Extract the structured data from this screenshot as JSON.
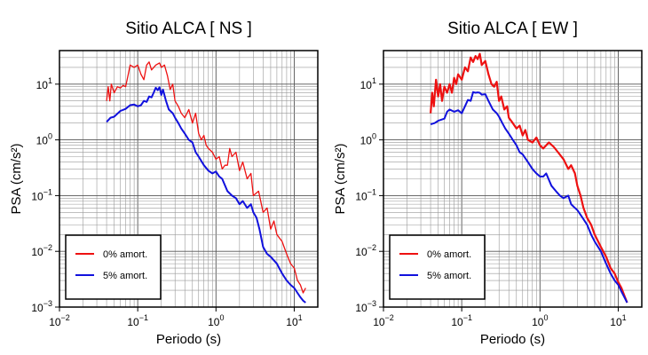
{
  "chart_data": [
    {
      "type": "line",
      "title": "Sitio ALCA [ NS ]",
      "xlabel": "Periodo (s)",
      "ylabel": "PSA (cm/s²)",
      "xscale": "log",
      "yscale": "log",
      "xlim": [
        0.01,
        20
      ],
      "ylim": [
        0.001,
        40
      ],
      "grid": true,
      "legend_position": "bottom-left",
      "x_ticks": [
        {
          "base": "10",
          "exp": "−2"
        },
        {
          "base": "10",
          "exp": "−1"
        },
        {
          "base": "10",
          "exp": "0"
        },
        {
          "base": "10",
          "exp": "1"
        }
      ],
      "y_ticks": [
        {
          "base": "10",
          "exp": "−3"
        },
        {
          "base": "10",
          "exp": "−2"
        },
        {
          "base": "10",
          "exp": "−1"
        },
        {
          "base": "10",
          "exp": "0"
        },
        {
          "base": "10",
          "exp": "1"
        }
      ],
      "series": [
        {
          "name": "0% amort.",
          "color": "#ee1111",
          "points": [
            [
              0.04,
              5.0
            ],
            [
              0.042,
              9.0
            ],
            [
              0.044,
              5.0
            ],
            [
              0.046,
              10.0
            ],
            [
              0.05,
              7.0
            ],
            [
              0.055,
              9.0
            ],
            [
              0.06,
              8.5
            ],
            [
              0.065,
              9.5
            ],
            [
              0.07,
              9.0
            ],
            [
              0.075,
              14.0
            ],
            [
              0.08,
              22.0
            ],
            [
              0.09,
              20.0
            ],
            [
              0.1,
              22.0
            ],
            [
              0.11,
              15.0
            ],
            [
              0.12,
              12.0
            ],
            [
              0.13,
              22.0
            ],
            [
              0.14,
              25.0
            ],
            [
              0.15,
              18.0
            ],
            [
              0.17,
              22.0
            ],
            [
              0.19,
              24.0
            ],
            [
              0.2,
              20.0
            ],
            [
              0.22,
              22.0
            ],
            [
              0.24,
              14.0
            ],
            [
              0.26,
              8.0
            ],
            [
              0.28,
              10.0
            ],
            [
              0.3,
              5.0
            ],
            [
              0.33,
              4.0
            ],
            [
              0.36,
              3.0
            ],
            [
              0.4,
              2.5
            ],
            [
              0.45,
              3.5
            ],
            [
              0.5,
              2.0
            ],
            [
              0.55,
              3.0
            ],
            [
              0.6,
              1.3
            ],
            [
              0.65,
              1.0
            ],
            [
              0.7,
              1.2
            ],
            [
              0.75,
              0.8
            ],
            [
              0.8,
              0.7
            ],
            [
              0.9,
              0.6
            ],
            [
              1.0,
              0.45
            ],
            [
              1.1,
              0.5
            ],
            [
              1.2,
              0.3
            ],
            [
              1.3,
              0.35
            ],
            [
              1.4,
              0.35
            ],
            [
              1.5,
              0.7
            ],
            [
              1.6,
              0.5
            ],
            [
              1.8,
              0.6
            ],
            [
              2.0,
              0.28
            ],
            [
              2.2,
              0.4
            ],
            [
              2.5,
              0.2
            ],
            [
              2.8,
              0.25
            ],
            [
              3.0,
              0.1
            ],
            [
              3.5,
              0.12
            ],
            [
              4.0,
              0.05
            ],
            [
              4.5,
              0.06
            ],
            [
              5.0,
              0.025
            ],
            [
              5.5,
              0.035
            ],
            [
              6.0,
              0.02
            ],
            [
              7.0,
              0.015
            ],
            [
              8.0,
              0.009
            ],
            [
              9.0,
              0.006
            ],
            [
              10.0,
              0.005
            ],
            [
              11.0,
              0.003
            ],
            [
              12.0,
              0.0025
            ],
            [
              13.0,
              0.0018
            ],
            [
              14.0,
              0.0022
            ]
          ]
        },
        {
          "name": "5% amort.",
          "color": "#1111dd",
          "points": [
            [
              0.04,
              2.1
            ],
            [
              0.045,
              2.5
            ],
            [
              0.05,
              2.6
            ],
            [
              0.06,
              3.3
            ],
            [
              0.07,
              3.6
            ],
            [
              0.08,
              4.2
            ],
            [
              0.09,
              4.3
            ],
            [
              0.1,
              4.0
            ],
            [
              0.11,
              4.2
            ],
            [
              0.12,
              5.0
            ],
            [
              0.13,
              4.8
            ],
            [
              0.14,
              6.0
            ],
            [
              0.15,
              5.8
            ],
            [
              0.16,
              7.0
            ],
            [
              0.17,
              8.6
            ],
            [
              0.18,
              7.8
            ],
            [
              0.19,
              8.8
            ],
            [
              0.2,
              6.4
            ],
            [
              0.21,
              8.0
            ],
            [
              0.23,
              5.0
            ],
            [
              0.25,
              3.5
            ],
            [
              0.28,
              3.0
            ],
            [
              0.3,
              2.5
            ],
            [
              0.33,
              2.0
            ],
            [
              0.36,
              1.6
            ],
            [
              0.4,
              1.3
            ],
            [
              0.45,
              1.0
            ],
            [
              0.5,
              0.9
            ],
            [
              0.55,
              0.6
            ],
            [
              0.6,
              0.5
            ],
            [
              0.7,
              0.35
            ],
            [
              0.8,
              0.28
            ],
            [
              0.9,
              0.25
            ],
            [
              1.0,
              0.27
            ],
            [
              1.1,
              0.22
            ],
            [
              1.2,
              0.2
            ],
            [
              1.4,
              0.12
            ],
            [
              1.6,
              0.1
            ],
            [
              1.8,
              0.09
            ],
            [
              2.0,
              0.07
            ],
            [
              2.2,
              0.08
            ],
            [
              2.5,
              0.06
            ],
            [
              2.8,
              0.07
            ],
            [
              3.0,
              0.05
            ],
            [
              3.3,
              0.04
            ],
            [
              3.6,
              0.025
            ],
            [
              4.0,
              0.012
            ],
            [
              4.5,
              0.009
            ],
            [
              5.0,
              0.008
            ],
            [
              6.0,
              0.006
            ],
            [
              7.0,
              0.004
            ],
            [
              8.0,
              0.003
            ],
            [
              9.0,
              0.0025
            ],
            [
              10.0,
              0.0022
            ],
            [
              11.0,
              0.0018
            ],
            [
              12.0,
              0.0015
            ],
            [
              13.0,
              0.0013
            ],
            [
              14.0,
              0.0012
            ]
          ]
        }
      ]
    },
    {
      "type": "line",
      "title": "Sitio ALCA [ EW ]",
      "xlabel": "Periodo (s)",
      "ylabel": "PSA (cm/s²)",
      "xscale": "log",
      "yscale": "log",
      "xlim": [
        0.01,
        20
      ],
      "ylim": [
        0.001,
        40
      ],
      "grid": true,
      "legend_position": "bottom-left",
      "x_ticks": [
        {
          "base": "10",
          "exp": "−2"
        },
        {
          "base": "10",
          "exp": "−1"
        },
        {
          "base": "10",
          "exp": "0"
        },
        {
          "base": "10",
          "exp": "1"
        }
      ],
      "y_ticks": [
        {
          "base": "10",
          "exp": "−3"
        },
        {
          "base": "10",
          "exp": "−2"
        },
        {
          "base": "10",
          "exp": "−1"
        },
        {
          "base": "10",
          "exp": "0"
        },
        {
          "base": "10",
          "exp": "1"
        }
      ],
      "series": [
        {
          "name": "0% amort.",
          "color": "#ee1111",
          "points": [
            [
              0.04,
              3.0
            ],
            [
              0.042,
              7.0
            ],
            [
              0.044,
              4.0
            ],
            [
              0.047,
              12.0
            ],
            [
              0.05,
              6.0
            ],
            [
              0.053,
              10.0
            ],
            [
              0.056,
              5.0
            ],
            [
              0.06,
              9.0
            ],
            [
              0.065,
              7.0
            ],
            [
              0.07,
              10.0
            ],
            [
              0.075,
              7.0
            ],
            [
              0.08,
              13.0
            ],
            [
              0.085,
              10.0
            ],
            [
              0.09,
              15.0
            ],
            [
              0.1,
              12.0
            ],
            [
              0.11,
              20.0
            ],
            [
              0.12,
              17.0
            ],
            [
              0.13,
              30.0
            ],
            [
              0.14,
              25.0
            ],
            [
              0.15,
              32.0
            ],
            [
              0.16,
              28.0
            ],
            [
              0.17,
              35.0
            ],
            [
              0.18,
              22.0
            ],
            [
              0.2,
              26.0
            ],
            [
              0.22,
              15.0
            ],
            [
              0.24,
              10.0
            ],
            [
              0.26,
              9.0
            ],
            [
              0.28,
              11.0
            ],
            [
              0.3,
              5.0
            ],
            [
              0.32,
              6.0
            ],
            [
              0.35,
              3.5
            ],
            [
              0.38,
              4.0
            ],
            [
              0.4,
              2.5
            ],
            [
              0.45,
              2.0
            ],
            [
              0.5,
              1.6
            ],
            [
              0.55,
              1.8
            ],
            [
              0.6,
              1.2
            ],
            [
              0.65,
              1.5
            ],
            [
              0.7,
              1.0
            ],
            [
              0.8,
              0.9
            ],
            [
              0.9,
              1.1
            ],
            [
              1.0,
              0.8
            ],
            [
              1.1,
              0.7
            ],
            [
              1.2,
              0.8
            ],
            [
              1.3,
              0.9
            ],
            [
              1.5,
              0.75
            ],
            [
              1.7,
              0.6
            ],
            [
              2.0,
              0.45
            ],
            [
              2.3,
              0.3
            ],
            [
              2.5,
              0.35
            ],
            [
              2.8,
              0.25
            ],
            [
              3.0,
              0.15
            ],
            [
              3.3,
              0.1
            ],
            [
              3.6,
              0.06
            ],
            [
              4.0,
              0.04
            ],
            [
              4.5,
              0.03
            ],
            [
              5.0,
              0.02
            ],
            [
              6.0,
              0.012
            ],
            [
              7.0,
              0.008
            ],
            [
              8.0,
              0.005
            ],
            [
              9.0,
              0.004
            ],
            [
              10.0,
              0.0028
            ],
            [
              11.0,
              0.0022
            ],
            [
              12.0,
              0.0016
            ],
            [
              13.0,
              0.0012
            ]
          ]
        },
        {
          "name": "5% amort.",
          "color": "#1111dd",
          "points": [
            [
              0.04,
              1.9
            ],
            [
              0.045,
              2.0
            ],
            [
              0.05,
              2.2
            ],
            [
              0.06,
              2.4
            ],
            [
              0.065,
              3.2
            ],
            [
              0.07,
              3.5
            ],
            [
              0.08,
              3.2
            ],
            [
              0.09,
              3.4
            ],
            [
              0.1,
              3.0
            ],
            [
              0.11,
              4.0
            ],
            [
              0.12,
              5.2
            ],
            [
              0.13,
              5.0
            ],
            [
              0.14,
              7.2
            ],
            [
              0.15,
              7.0
            ],
            [
              0.16,
              7.1
            ],
            [
              0.17,
              7.0
            ],
            [
              0.18,
              6.5
            ],
            [
              0.2,
              6.6
            ],
            [
              0.22,
              5.0
            ],
            [
              0.25,
              3.5
            ],
            [
              0.28,
              3.0
            ],
            [
              0.3,
              2.6
            ],
            [
              0.33,
              2.0
            ],
            [
              0.36,
              1.6
            ],
            [
              0.4,
              1.3
            ],
            [
              0.45,
              1.0
            ],
            [
              0.5,
              0.8
            ],
            [
              0.55,
              0.6
            ],
            [
              0.6,
              0.55
            ],
            [
              0.7,
              0.4
            ],
            [
              0.8,
              0.3
            ],
            [
              0.9,
              0.25
            ],
            [
              1.0,
              0.22
            ],
            [
              1.1,
              0.22
            ],
            [
              1.2,
              0.25
            ],
            [
              1.4,
              0.15
            ],
            [
              1.6,
              0.12
            ],
            [
              1.8,
              0.1
            ],
            [
              2.0,
              0.09
            ],
            [
              2.3,
              0.1
            ],
            [
              2.5,
              0.07
            ],
            [
              2.8,
              0.06
            ],
            [
              3.0,
              0.055
            ],
            [
              3.5,
              0.04
            ],
            [
              4.0,
              0.03
            ],
            [
              4.5,
              0.02
            ],
            [
              5.0,
              0.015
            ],
            [
              6.0,
              0.01
            ],
            [
              7.0,
              0.006
            ],
            [
              8.0,
              0.004
            ],
            [
              9.0,
              0.003
            ],
            [
              10.0,
              0.0025
            ],
            [
              11.0,
              0.0019
            ],
            [
              12.0,
              0.0015
            ],
            [
              13.0,
              0.0012
            ]
          ]
        }
      ]
    }
  ]
}
